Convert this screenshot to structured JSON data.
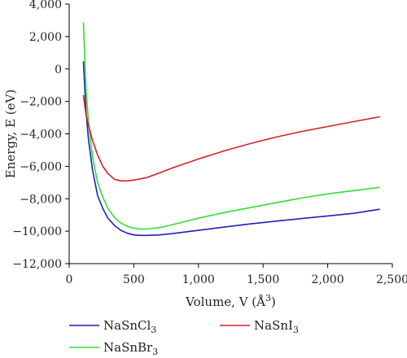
{
  "chart_data": {
    "type": "line",
    "title": "",
    "xlabel": "Volume, V (Å³)",
    "ylabel": "Energy, E (eV)",
    "xlim": [
      0,
      2500
    ],
    "ylim": [
      -12000,
      4000
    ],
    "x_ticks": [
      0,
      500,
      1000,
      1500,
      2000,
      2500
    ],
    "x_tick_labels": [
      "0",
      "500",
      "1,000",
      "1,500",
      "2,000",
      "2,500"
    ],
    "y_ticks": [
      4000,
      2000,
      0,
      -2000,
      -4000,
      -6000,
      -8000,
      -10000,
      -12000
    ],
    "y_tick_labels": [
      "4,000",
      "2,000",
      "0",
      "−2,000",
      "−4,000",
      "−6,000",
      "−8,000",
      "−10,000",
      "−12,000"
    ],
    "grid": false,
    "legend_position": "bottom",
    "series": [
      {
        "name": "NaSnCl3",
        "name_html": [
          "NaSnCl",
          "3"
        ],
        "color": "#1f1fbf",
        "points": [
          [
            110,
            450
          ],
          [
            130,
            -2600
          ],
          [
            150,
            -4400
          ],
          [
            180,
            -6200
          ],
          [
            220,
            -7800
          ],
          [
            260,
            -8600
          ],
          [
            300,
            -9200
          ],
          [
            350,
            -9650
          ],
          [
            400,
            -9950
          ],
          [
            450,
            -10130
          ],
          [
            500,
            -10230
          ],
          [
            550,
            -10260
          ],
          [
            600,
            -10260
          ],
          [
            700,
            -10230
          ],
          [
            800,
            -10150
          ],
          [
            1000,
            -9950
          ],
          [
            1200,
            -9750
          ],
          [
            1400,
            -9550
          ],
          [
            1600,
            -9380
          ],
          [
            1800,
            -9220
          ],
          [
            2000,
            -9060
          ],
          [
            2200,
            -8900
          ],
          [
            2400,
            -8650
          ]
        ]
      },
      {
        "name": "NaSnBr3",
        "name_html": [
          "NaSnBr",
          "3"
        ],
        "color": "#33dd33",
        "points": [
          [
            110,
            2850
          ],
          [
            130,
            -1200
          ],
          [
            150,
            -3300
          ],
          [
            180,
            -5400
          ],
          [
            220,
            -7000
          ],
          [
            260,
            -7900
          ],
          [
            300,
            -8600
          ],
          [
            350,
            -9150
          ],
          [
            400,
            -9500
          ],
          [
            450,
            -9700
          ],
          [
            500,
            -9820
          ],
          [
            550,
            -9870
          ],
          [
            600,
            -9870
          ],
          [
            700,
            -9780
          ],
          [
            800,
            -9600
          ],
          [
            1000,
            -9200
          ],
          [
            1200,
            -8850
          ],
          [
            1400,
            -8550
          ],
          [
            1600,
            -8250
          ],
          [
            1800,
            -7950
          ],
          [
            2000,
            -7700
          ],
          [
            2200,
            -7500
          ],
          [
            2400,
            -7300
          ]
        ]
      },
      {
        "name": "NaSnI3",
        "name_html": [
          "NaSnI",
          "3"
        ],
        "color": "#d42020",
        "points": [
          [
            110,
            -1650
          ],
          [
            130,
            -2800
          ],
          [
            150,
            -3500
          ],
          [
            180,
            -4400
          ],
          [
            220,
            -5300
          ],
          [
            260,
            -6000
          ],
          [
            300,
            -6450
          ],
          [
            350,
            -6800
          ],
          [
            400,
            -6900
          ],
          [
            450,
            -6900
          ],
          [
            500,
            -6850
          ],
          [
            600,
            -6700
          ],
          [
            700,
            -6400
          ],
          [
            800,
            -6100
          ],
          [
            1000,
            -5550
          ],
          [
            1200,
            -5050
          ],
          [
            1400,
            -4600
          ],
          [
            1600,
            -4200
          ],
          [
            1800,
            -3850
          ],
          [
            2000,
            -3550
          ],
          [
            2200,
            -3250
          ],
          [
            2400,
            -2950
          ]
        ]
      }
    ]
  }
}
